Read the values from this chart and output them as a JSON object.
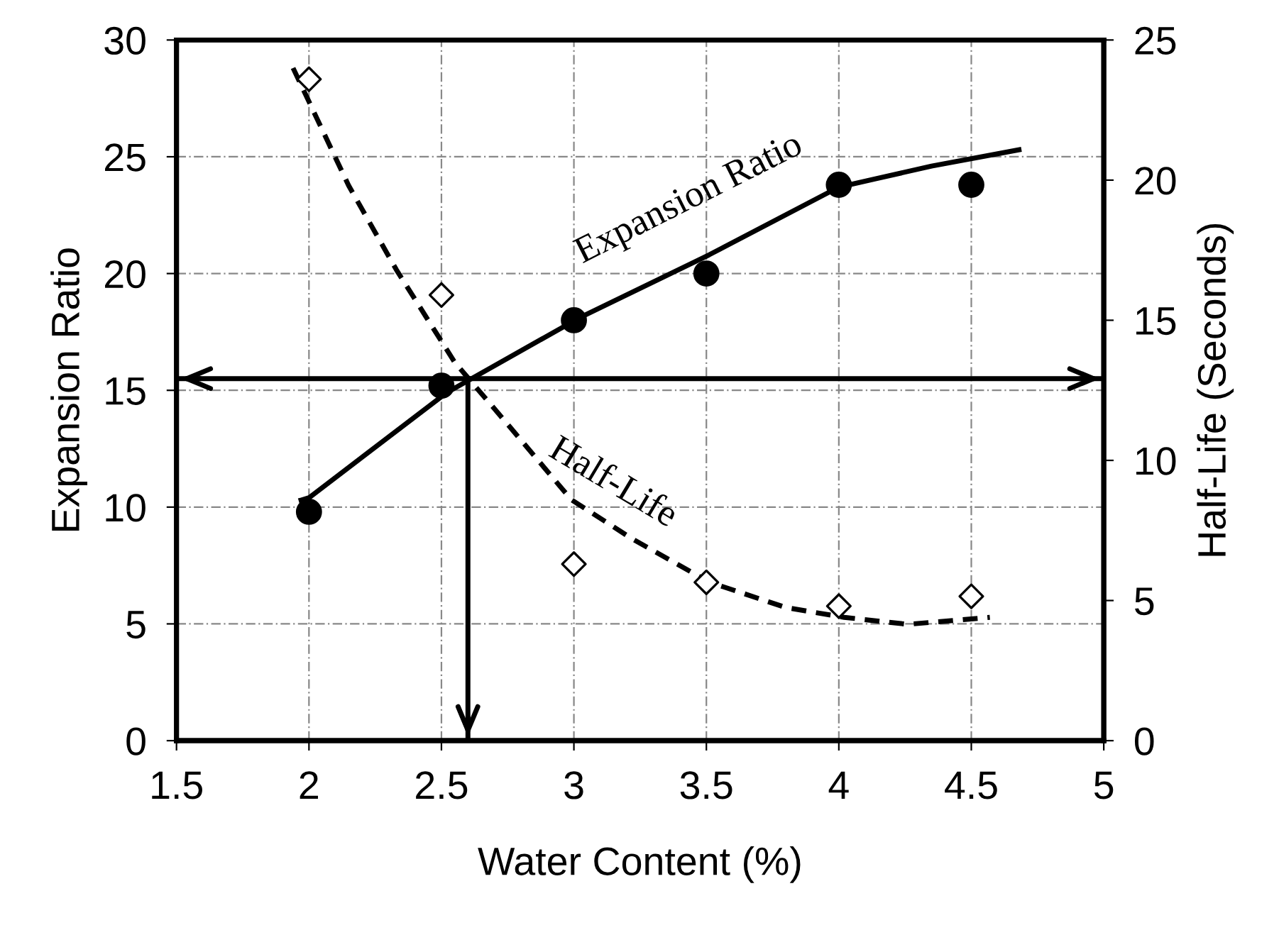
{
  "chart_data": {
    "type": "scatter",
    "xlabel": "Water Content (%)",
    "ylabel": "Expansion Ratio",
    "y2label": "Half-Life (Seconds)",
    "xlim": [
      1.5,
      5
    ],
    "xticks": [
      1.5,
      2,
      2.5,
      3,
      3.5,
      4,
      4.5,
      5
    ],
    "ylim": [
      0,
      30
    ],
    "yticks": [
      0,
      5,
      10,
      15,
      20,
      25,
      30
    ],
    "y2lim": [
      0,
      25
    ],
    "y2ticks": [
      0,
      5,
      10,
      15,
      20,
      25
    ],
    "grid": true,
    "series": [
      {
        "type": "scatter",
        "color": "#000000",
        "marker": "circle",
        "x": [
          2,
          2.5,
          3,
          3.5,
          4,
          4.5
        ],
        "values": [
          9.8,
          15.2,
          18.0,
          20.0,
          23.8,
          23.8
        ]
      },
      {
        "type": "scatter",
        "axis": "y2",
        "color": "#000000",
        "marker": "diamond",
        "x": [
          2,
          2.5,
          3,
          3.5,
          4,
          4.5
        ],
        "values": [
          23.6,
          15.9,
          6.3,
          5.65,
          4.8,
          5.15
        ]
      },
      {
        "type": "line",
        "name": "Expansion Ratio",
        "color": "#000000",
        "line_style": "solid",
        "x": [
          1.97,
          2.0,
          2.52,
          3.02,
          3.51,
          4.0,
          4.35,
          4.68
        ],
        "values": [
          10.3,
          10.4,
          14.9,
          18.1,
          20.8,
          23.7,
          24.6,
          25.3
        ]
      },
      {
        "type": "line",
        "name": "Half-Life",
        "axis": "y2",
        "color": "#000000",
        "line_style": "dashed",
        "x": [
          1.94,
          2.15,
          2.33,
          2.55,
          2.74,
          2.99,
          3.22,
          3.51,
          3.8,
          4.02,
          4.26,
          4.57
        ],
        "values": [
          24.0,
          19.8,
          16.8,
          13.5,
          11.4,
          8.6,
          7.2,
          5.66,
          4.75,
          4.4,
          4.15,
          4.4
        ]
      }
    ],
    "ref_lines": [
      {
        "axis": "y",
        "value": 15.5,
        "color": "#000000",
        "line_style": "solid"
      },
      {
        "axis": "x",
        "value": 2.6,
        "color": "#000000",
        "line_style": "solid"
      }
    ]
  }
}
